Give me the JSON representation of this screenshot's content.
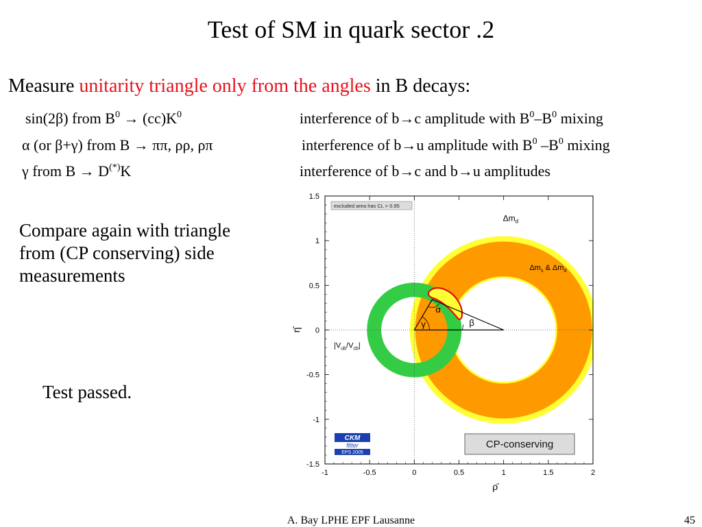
{
  "slide": {
    "title": "Test of SM in quark sector .2",
    "intro": {
      "prefix": "Measure ",
      "highlight": "unitarity triangle only from the angles",
      "suffix": " in B decays:"
    },
    "measurements": [
      {
        "left_a": "sin(2β) from B",
        "left_sup_a": "0",
        "left_b": " → (cc)K",
        "left_sup_b": "0",
        "right_a": "interference of b→c amplitude with B",
        "right_sup_a": "0",
        "right_b": "–B",
        "right_sup_b": "0",
        "right_c": " mixing"
      },
      {
        "left_a": "α (or β+γ) from B  → ππ, ρρ, ρπ",
        "right_a": "interference of b→u amplitude with B",
        "right_sup_a": "0",
        "right_b": " –B",
        "right_sup_b": "0",
        "right_c": " mixing"
      },
      {
        "left_a": "γ from B → D",
        "left_sup_a": "(*)",
        "left_b": "K",
        "right_a": "interference of b→c and b→u amplitudes"
      }
    ],
    "compare_lines": [
      "Compare again with triangle",
      "from (CP conserving) side",
      "measurements"
    ],
    "result": "Test passed.",
    "footer": "A. Bay   LPHE EPF Lausanne",
    "page_number": "45"
  },
  "chart_data": {
    "type": "scatter",
    "title": "",
    "xlabel": "ρ̄",
    "ylabel": "η̄",
    "xlim": [
      -1,
      2
    ],
    "ylim": [
      -1.5,
      1.5
    ],
    "x_ticks": [
      "-1",
      "-0.5",
      "0",
      "0.5",
      "1",
      "1.5",
      "2"
    ],
    "y_ticks": [
      "1.5",
      "1",
      "0.5",
      "0",
      "-0.5",
      "-1",
      "-1.5"
    ],
    "grid": false,
    "legend_box": "excluded area has CL > 0.95",
    "constraints": [
      {
        "name": "Δmd",
        "label_main": "Δm",
        "label_sub": "d",
        "shape": "annulus",
        "center": [
          1,
          0
        ],
        "r_outer": 1.05,
        "r_inner": 0.58,
        "color": "#ffff33"
      },
      {
        "name": "Δms & Δmd",
        "label_main": "Δm",
        "label_sub": "s",
        "label_mid": " & Δm",
        "label_sub2": "d",
        "shape": "annulus",
        "center": [
          1,
          0
        ],
        "r_outer": 0.99,
        "r_inner": 0.6,
        "color": "#ff9900"
      },
      {
        "name": "|Vub/Vcb|",
        "label": "|V",
        "label_sub": "ub",
        "label_mid": "/V",
        "label_sub2": "cb",
        "label_end": "|",
        "shape": "annulus",
        "center": [
          0,
          0
        ],
        "r_outer": 0.53,
        "r_inner": 0.37,
        "color": "#33cc44"
      }
    ],
    "triangle": {
      "vertices": [
        [
          0,
          0
        ],
        [
          1,
          0
        ],
        [
          0.2,
          0.34
        ]
      ],
      "angle_labels": [
        "α",
        "β",
        "γ"
      ]
    },
    "fit_region": {
      "apex": [
        0.2,
        0.34
      ],
      "fill": "#ffff33",
      "outline": "#e01010"
    },
    "logo": {
      "line1": "CKM",
      "line2": "fitter",
      "line3": "EPS 2005"
    },
    "badge": "CP-conserving"
  }
}
